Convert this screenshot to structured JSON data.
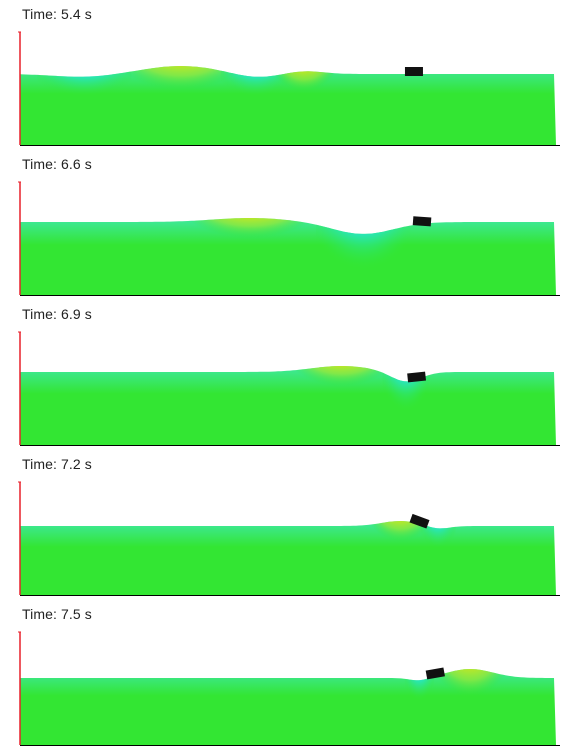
{
  "colors": {
    "background": "#ffffff",
    "fluid_base": "#33e633",
    "wall": "#e8202a",
    "floor_line": "#000000",
    "body": "#111111",
    "crest": "#ff1a00",
    "trough": "#1a2aff"
  },
  "panels": [
    {
      "label": "Time: 5.4 s",
      "features": [
        {
          "kind": "crest",
          "cx": 0.3,
          "w": 0.1,
          "amp": 8
        },
        {
          "kind": "trough",
          "cx": 0.12,
          "w": 0.08,
          "amp": -3
        },
        {
          "kind": "trough",
          "cx": 0.44,
          "w": 0.06,
          "amp": -4
        },
        {
          "kind": "crest",
          "cx": 0.53,
          "w": 0.05,
          "amp": 3
        }
      ],
      "body": {
        "cx": 0.735,
        "tilt": 0
      }
    },
    {
      "label": "Time: 6.6 s",
      "features": [
        {
          "kind": "crest",
          "cx": 0.43,
          "w": 0.1,
          "amp": 4
        },
        {
          "kind": "trough",
          "cx": 0.64,
          "w": 0.08,
          "amp": -12
        }
      ],
      "body": {
        "cx": 0.75,
        "tilt": 4
      }
    },
    {
      "label": "Time: 6.9 s",
      "features": [
        {
          "kind": "crest",
          "cx": 0.6,
          "w": 0.08,
          "amp": 6
        },
        {
          "kind": "trough",
          "cx": 0.72,
          "w": 0.04,
          "amp": -10
        }
      ],
      "body": {
        "cx": 0.74,
        "tilt": -6
      }
    },
    {
      "label": "Time: 7.2 s",
      "features": [
        {
          "kind": "crest",
          "cx": 0.71,
          "w": 0.05,
          "amp": 5
        },
        {
          "kind": "trough",
          "cx": 0.78,
          "w": 0.03,
          "amp": -3
        }
      ],
      "body": {
        "cx": 0.745,
        "tilt": 20
      }
    },
    {
      "label": "Time: 7.5 s",
      "features": [
        {
          "kind": "crest",
          "cx": 0.84,
          "w": 0.06,
          "amp": 9
        },
        {
          "kind": "trough",
          "cx": 0.745,
          "w": 0.025,
          "amp": -3
        }
      ],
      "body": {
        "cx": 0.775,
        "tilt": -10
      }
    }
  ]
}
